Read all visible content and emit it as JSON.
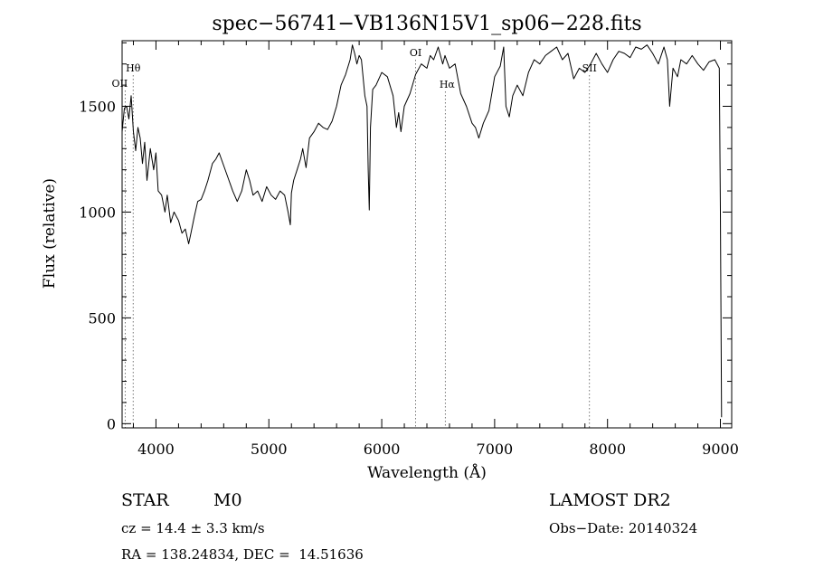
{
  "chart_data": {
    "type": "line",
    "title": "spec−56741−VB136N15V1_sp06−228.fits",
    "xlabel": "Wavelength (Å)",
    "ylabel": "Flux (relative)",
    "xlim": [
      3700,
      9100
    ],
    "ylim": [
      -20,
      1810
    ],
    "xticks": [
      4000,
      5000,
      6000,
      7000,
      8000,
      9000
    ],
    "yticks": [
      0,
      500,
      1000,
      1500
    ],
    "grid": false,
    "series": [
      {
        "x": [
          3700,
          3720,
          3740,
          3760,
          3780,
          3800,
          3820,
          3840,
          3860,
          3880,
          3900,
          3920,
          3950,
          3980,
          4000,
          4020,
          4050,
          4080,
          4100,
          4130,
          4160,
          4200,
          4230,
          4260,
          4290,
          4310,
          4340,
          4370,
          4400,
          4430,
          4460,
          4500,
          4530,
          4560,
          4600,
          4640,
          4680,
          4720,
          4760,
          4800,
          4830,
          4860,
          4900,
          4940,
          4980,
          5020,
          5060,
          5100,
          5140,
          5170,
          5190,
          5200,
          5220,
          5250,
          5280,
          5300,
          5330,
          5360,
          5400,
          5440,
          5480,
          5520,
          5560,
          5600,
          5640,
          5680,
          5720,
          5740,
          5760,
          5780,
          5800,
          5820,
          5850,
          5870,
          5880,
          5890,
          5900,
          5920,
          5950,
          6000,
          6050,
          6100,
          6130,
          6150,
          6170,
          6200,
          6250,
          6300,
          6350,
          6400,
          6430,
          6460,
          6500,
          6540,
          6560,
          6600,
          6650,
          6700,
          6750,
          6800,
          6830,
          6860,
          6900,
          6950,
          7000,
          7050,
          7080,
          7100,
          7130,
          7160,
          7200,
          7250,
          7300,
          7350,
          7400,
          7450,
          7500,
          7550,
          7600,
          7650,
          7700,
          7750,
          7800,
          7850,
          7900,
          7950,
          8000,
          8050,
          8100,
          8150,
          8200,
          8250,
          8300,
          8350,
          8400,
          8450,
          8500,
          8530,
          8550,
          8580,
          8620,
          8650,
          8700,
          8750,
          8800,
          8850,
          8900,
          8950,
          8990,
          9000,
          9010
        ],
        "y": [
          1380,
          1490,
          1500,
          1440,
          1550,
          1380,
          1290,
          1400,
          1350,
          1230,
          1330,
          1150,
          1300,
          1200,
          1280,
          1100,
          1080,
          1000,
          1080,
          950,
          1000,
          960,
          900,
          920,
          850,
          900,
          980,
          1050,
          1060,
          1100,
          1150,
          1230,
          1250,
          1280,
          1220,
          1160,
          1100,
          1050,
          1100,
          1200,
          1150,
          1080,
          1100,
          1050,
          1120,
          1080,
          1060,
          1100,
          1080,
          1000,
          940,
          1090,
          1150,
          1200,
          1250,
          1300,
          1210,
          1350,
          1380,
          1420,
          1400,
          1390,
          1430,
          1500,
          1600,
          1650,
          1720,
          1790,
          1750,
          1700,
          1740,
          1720,
          1550,
          1500,
          1200,
          1010,
          1400,
          1580,
          1600,
          1660,
          1640,
          1550,
          1400,
          1470,
          1380,
          1500,
          1560,
          1650,
          1700,
          1680,
          1740,
          1720,
          1780,
          1700,
          1740,
          1680,
          1700,
          1560,
          1500,
          1420,
          1400,
          1350,
          1420,
          1480,
          1640,
          1690,
          1780,
          1500,
          1450,
          1550,
          1600,
          1550,
          1660,
          1720,
          1700,
          1740,
          1760,
          1780,
          1720,
          1750,
          1630,
          1680,
          1660,
          1700,
          1750,
          1700,
          1660,
          1720,
          1760,
          1750,
          1730,
          1780,
          1770,
          1790,
          1750,
          1700,
          1780,
          1720,
          1500,
          1680,
          1640,
          1720,
          1700,
          1740,
          1700,
          1670,
          1710,
          1720,
          1680,
          1000,
          30
        ]
      }
    ],
    "annotations": [
      {
        "text": "OII",
        "x": 3727
      },
      {
        "text": "Hθ",
        "x": 3798
      },
      {
        "text": "OI",
        "x": 6300
      },
      {
        "text": "Hα",
        "x": 6563
      },
      {
        "text": "SII",
        "x": 7840
      }
    ]
  },
  "info": {
    "object_class": "STAR",
    "subclass": "M0",
    "redshift": "cz = 14.4 ± 3.3 km/s",
    "coords": "RA = 138.24834, DEC =  14.51636",
    "survey": "LAMOST DR2",
    "obs_date": "Obs−Date: 20140324"
  }
}
